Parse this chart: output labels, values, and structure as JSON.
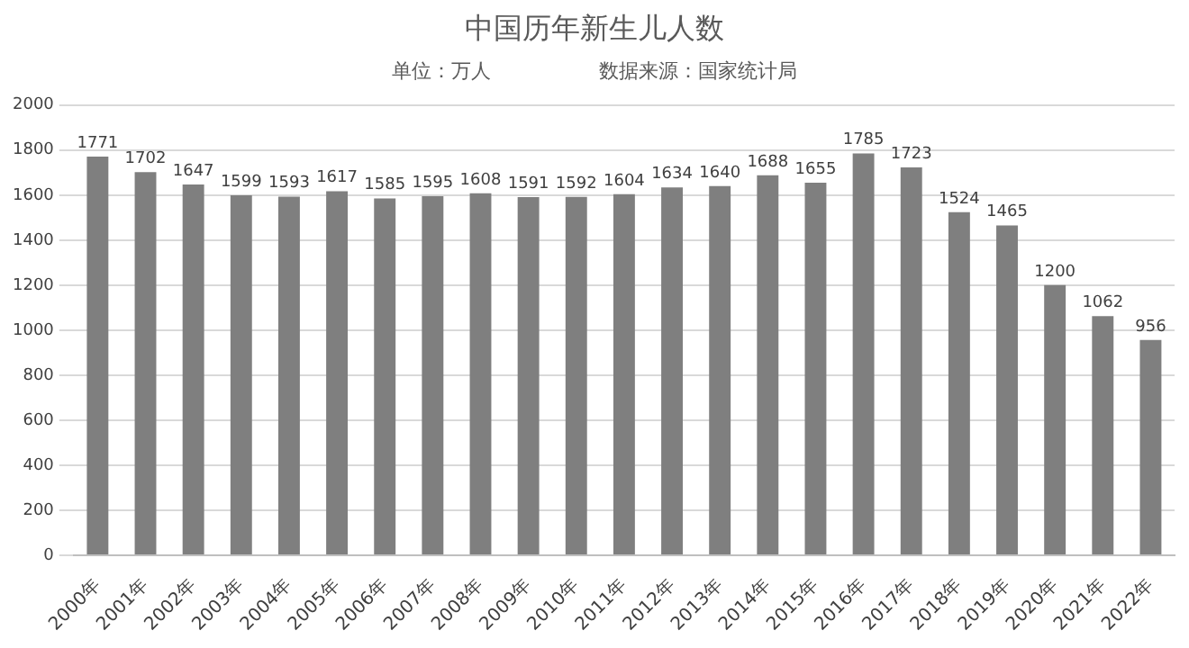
{
  "chart_data": {
    "type": "bar",
    "title": "中国历年新生儿人数",
    "subtitle": "单位：万人",
    "annotations": [
      "数据来源：国家统计局"
    ],
    "categories": [
      "2000年",
      "2001年",
      "2002年",
      "2003年",
      "2004年",
      "2005年",
      "2006年",
      "2007年",
      "2008年",
      "2009年",
      "2010年",
      "2011年",
      "2012年",
      "2013年",
      "2014年",
      "2015年",
      "2016年",
      "2017年",
      "2018年",
      "2019年",
      "2020年",
      "2021年",
      "2022年"
    ],
    "values": [
      1771,
      1702,
      1647,
      1599,
      1593,
      1617,
      1585,
      1595,
      1608,
      1591,
      1592,
      1604,
      1634,
      1640,
      1688,
      1655,
      1785,
      1723,
      1524,
      1465,
      1200,
      1062,
      956
    ],
    "color": "#7f7f7f",
    "ylim": [
      0,
      2000
    ],
    "yticks": [
      0,
      200,
      400,
      600,
      800,
      1000,
      1200,
      1400,
      1600,
      1800,
      2000
    ],
    "grid": "y",
    "data_labels": true,
    "legend": false
  }
}
